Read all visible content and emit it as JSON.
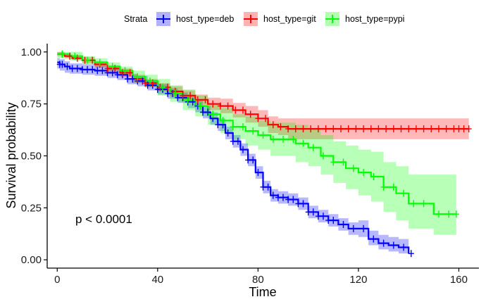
{
  "chart_data": {
    "type": "line",
    "subtype": "kaplan-meier survival curve with 95% confidence bands and censor marks",
    "xlabel": "Time",
    "ylabel": "Survival probability",
    "xlim": [
      -4,
      168
    ],
    "ylim": [
      -0.04,
      1.04
    ],
    "xticks": [
      0,
      40,
      80,
      120,
      160
    ],
    "xtick_labels": [
      "0",
      "40",
      "80",
      "120",
      "160"
    ],
    "yticks": [
      0,
      0.25,
      0.5,
      0.75,
      1.0
    ],
    "ytick_labels": [
      "0.00",
      "0.25",
      "0.50",
      "0.75",
      "1.00"
    ],
    "grid": false,
    "legend": {
      "title": "Strata",
      "position": "top",
      "entries": [
        "host_type=deb",
        "host_type=git",
        "host_type=pypi"
      ]
    },
    "annotation": "p < 0.0001",
    "series": [
      {
        "name": "host_type=deb",
        "color": "#0000ff",
        "band_color": "#0000ff",
        "x": [
          0,
          1,
          3,
          5,
          10,
          15,
          20,
          24,
          28,
          32,
          36,
          40,
          44,
          48,
          52,
          55,
          58,
          61,
          64,
          67,
          70,
          73,
          76,
          79,
          82,
          85,
          88,
          92,
          96,
          100,
          104,
          108,
          112,
          116,
          120,
          124,
          128,
          132,
          136,
          140
        ],
        "y": [
          0.95,
          0.94,
          0.93,
          0.92,
          0.915,
          0.91,
          0.9,
          0.89,
          0.87,
          0.86,
          0.84,
          0.82,
          0.8,
          0.78,
          0.76,
          0.74,
          0.71,
          0.68,
          0.65,
          0.61,
          0.57,
          0.53,
          0.48,
          0.42,
          0.35,
          0.31,
          0.3,
          0.29,
          0.27,
          0.23,
          0.21,
          0.19,
          0.17,
          0.15,
          0.15,
          0.1,
          0.08,
          0.07,
          0.06,
          0.03
        ],
        "lower": [
          0.92,
          0.91,
          0.9,
          0.895,
          0.89,
          0.885,
          0.875,
          0.865,
          0.845,
          0.835,
          0.815,
          0.795,
          0.775,
          0.755,
          0.73,
          0.71,
          0.68,
          0.65,
          0.62,
          0.58,
          0.54,
          0.5,
          0.45,
          0.39,
          0.32,
          0.28,
          0.27,
          0.26,
          0.24,
          0.2,
          0.18,
          0.16,
          0.14,
          0.12,
          0.11,
          0.07,
          0.05,
          0.04,
          0.03,
          0.0
        ],
        "upper": [
          0.97,
          0.965,
          0.955,
          0.945,
          0.94,
          0.935,
          0.925,
          0.915,
          0.895,
          0.885,
          0.865,
          0.845,
          0.825,
          0.805,
          0.79,
          0.77,
          0.74,
          0.71,
          0.68,
          0.64,
          0.6,
          0.56,
          0.51,
          0.45,
          0.38,
          0.34,
          0.33,
          0.32,
          0.3,
          0.26,
          0.24,
          0.22,
          0.2,
          0.18,
          0.19,
          0.14,
          0.12,
          0.11,
          0.1,
          0.08
        ],
        "censor_x": [
          1,
          2,
          4,
          6,
          8,
          10,
          12,
          14,
          16,
          18,
          20,
          22,
          24,
          26,
          28,
          30,
          32,
          34,
          36,
          38,
          40,
          42,
          44,
          46,
          48,
          50,
          52,
          54,
          56,
          58,
          60,
          62,
          64,
          66,
          68,
          70,
          72,
          74,
          76,
          78,
          80,
          82,
          84,
          86,
          88,
          90,
          92,
          94,
          96,
          98,
          100,
          102,
          104,
          106,
          108,
          110,
          114,
          118,
          122,
          126,
          130,
          134,
          138,
          141
        ]
      },
      {
        "name": "host_type=git",
        "color": "#ff0000",
        "band_color": "#ff0000",
        "x": [
          0,
          3,
          6,
          10,
          15,
          20,
          25,
          30,
          35,
          40,
          45,
          50,
          55,
          60,
          65,
          70,
          75,
          80,
          84,
          88,
          92,
          164
        ],
        "y": [
          0.99,
          0.98,
          0.97,
          0.96,
          0.94,
          0.92,
          0.9,
          0.87,
          0.85,
          0.83,
          0.81,
          0.79,
          0.77,
          0.75,
          0.74,
          0.72,
          0.7,
          0.68,
          0.65,
          0.64,
          0.63,
          0.63
        ],
        "lower": [
          0.98,
          0.97,
          0.96,
          0.945,
          0.925,
          0.905,
          0.88,
          0.85,
          0.83,
          0.81,
          0.785,
          0.765,
          0.745,
          0.72,
          0.705,
          0.685,
          0.66,
          0.64,
          0.61,
          0.6,
          0.58,
          0.57
        ],
        "upper": [
          1.0,
          0.99,
          0.98,
          0.975,
          0.955,
          0.935,
          0.92,
          0.89,
          0.87,
          0.85,
          0.835,
          0.815,
          0.795,
          0.78,
          0.775,
          0.755,
          0.74,
          0.72,
          0.69,
          0.68,
          0.68,
          0.68
        ],
        "censor_x": [
          2,
          5,
          8,
          11,
          14,
          17,
          20,
          23,
          26,
          29,
          32,
          35,
          38,
          41,
          44,
          47,
          50,
          53,
          56,
          59,
          62,
          65,
          68,
          71,
          74,
          77,
          80,
          83,
          86,
          89,
          92,
          95,
          98,
          101,
          104,
          107,
          110,
          113,
          116,
          119,
          122,
          125,
          128,
          131,
          134,
          137,
          140,
          143,
          146,
          149,
          152,
          155,
          158,
          160,
          162,
          164
        ]
      },
      {
        "name": "host_type=pypi",
        "color": "#00ff00",
        "band_color": "#00ff00",
        "x": [
          0,
          5,
          10,
          15,
          20,
          25,
          30,
          35,
          40,
          45,
          50,
          55,
          60,
          65,
          70,
          75,
          80,
          85,
          90,
          95,
          100,
          105,
          110,
          115,
          120,
          125,
          130,
          135,
          140,
          145,
          150,
          159
        ],
        "y": [
          0.99,
          0.98,
          0.96,
          0.95,
          0.93,
          0.91,
          0.88,
          0.86,
          0.83,
          0.8,
          0.77,
          0.74,
          0.7,
          0.67,
          0.64,
          0.62,
          0.6,
          0.58,
          0.58,
          0.56,
          0.54,
          0.5,
          0.47,
          0.44,
          0.42,
          0.4,
          0.35,
          0.32,
          0.27,
          0.27,
          0.22,
          0.22
        ],
        "lower": [
          0.97,
          0.96,
          0.94,
          0.93,
          0.91,
          0.89,
          0.85,
          0.83,
          0.79,
          0.76,
          0.72,
          0.69,
          0.65,
          0.61,
          0.58,
          0.55,
          0.53,
          0.5,
          0.5,
          0.47,
          0.45,
          0.41,
          0.37,
          0.34,
          0.31,
          0.28,
          0.23,
          0.19,
          0.15,
          0.15,
          0.12,
          0.12
        ],
        "upper": [
          1.0,
          1.0,
          0.98,
          0.97,
          0.95,
          0.93,
          0.91,
          0.89,
          0.87,
          0.84,
          0.82,
          0.79,
          0.75,
          0.73,
          0.7,
          0.69,
          0.67,
          0.66,
          0.66,
          0.65,
          0.63,
          0.6,
          0.57,
          0.55,
          0.53,
          0.52,
          0.47,
          0.45,
          0.41,
          0.41,
          0.41,
          0.41
        ],
        "censor_x": [
          2,
          7,
          12,
          17,
          22,
          27,
          32,
          37,
          42,
          47,
          52,
          57,
          62,
          66,
          70,
          74,
          78,
          82,
          86,
          90,
          94,
          98,
          102,
          106,
          110,
          114,
          118,
          122,
          126,
          130,
          134,
          138,
          142,
          146,
          152,
          156,
          159
        ]
      }
    ]
  }
}
